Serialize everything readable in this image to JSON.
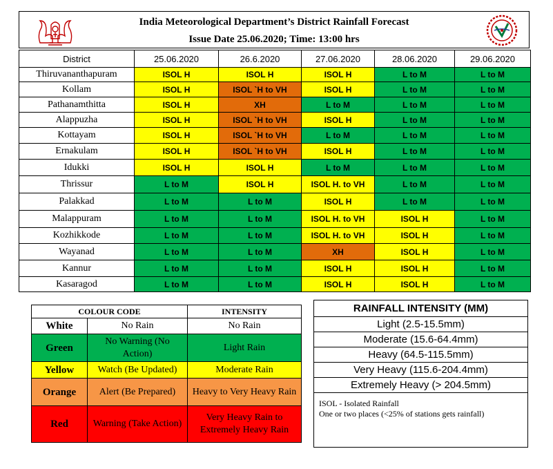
{
  "header": {
    "title": "India Meteorological Department’s District Rainfall Forecast",
    "issue_line": "Issue Date  25.06.2020;  Time: 13:00 hrs"
  },
  "forecast": {
    "column_headers": [
      "District",
      "25.06.2020",
      "26.6.2020",
      "27.06.2020",
      "28.06.2020",
      "29.06.2020"
    ],
    "rows": [
      {
        "district": "Thiruvananthapuram",
        "cells": [
          {
            "text": "ISOL H",
            "color": "Y"
          },
          {
            "text": "ISOL H",
            "color": "Y"
          },
          {
            "text": "ISOL H",
            "color": "Y"
          },
          {
            "text": "L to M",
            "color": "G"
          },
          {
            "text": "L to M",
            "color": "G"
          }
        ]
      },
      {
        "district": "Kollam",
        "cells": [
          {
            "text": "ISOL H",
            "color": "Y"
          },
          {
            "text": "ISOL `H to VH",
            "color": "O"
          },
          {
            "text": "ISOL H",
            "color": "Y"
          },
          {
            "text": "L to M",
            "color": "G"
          },
          {
            "text": "L to M",
            "color": "G"
          }
        ]
      },
      {
        "district": "Pathanamthitta",
        "cells": [
          {
            "text": "ISOL H",
            "color": "Y"
          },
          {
            "text": "XH",
            "color": "O"
          },
          {
            "text": "L to M",
            "color": "G"
          },
          {
            "text": "L to M",
            "color": "G"
          },
          {
            "text": "L to M",
            "color": "G"
          }
        ]
      },
      {
        "district": "Alappuzha",
        "cells": [
          {
            "text": "ISOL H",
            "color": "Y"
          },
          {
            "text": "ISOL `H to VH",
            "color": "O"
          },
          {
            "text": "ISOL H",
            "color": "Y"
          },
          {
            "text": "L to M",
            "color": "G"
          },
          {
            "text": "L to M",
            "color": "G"
          }
        ]
      },
      {
        "district": "Kottayam",
        "cells": [
          {
            "text": "ISOL H",
            "color": "Y"
          },
          {
            "text": "ISOL `H to VH",
            "color": "O"
          },
          {
            "text": "L to M",
            "color": "G"
          },
          {
            "text": "L to M",
            "color": "G"
          },
          {
            "text": "L to M",
            "color": "G"
          }
        ]
      },
      {
        "district": "Ernakulam",
        "cells": [
          {
            "text": "ISOL H",
            "color": "Y"
          },
          {
            "text": "ISOL `H to VH",
            "color": "O"
          },
          {
            "text": "ISOL H",
            "color": "Y"
          },
          {
            "text": "L to M",
            "color": "G"
          },
          {
            "text": "L to M",
            "color": "G"
          }
        ]
      },
      {
        "district": "Idukki",
        "cells": [
          {
            "text": "ISOL H",
            "color": "Y"
          },
          {
            "text": "ISOL H",
            "color": "Y"
          },
          {
            "text": "L to M",
            "color": "G"
          },
          {
            "text": "L to M",
            "color": "G"
          },
          {
            "text": "L to M",
            "color": "G"
          }
        ]
      },
      {
        "district": "Thrissur",
        "cells": [
          {
            "text": "L to M",
            "color": "G"
          },
          {
            "text": "ISOL H",
            "color": "Y"
          },
          {
            "text": "ISOL H. to VH",
            "color": "Y"
          },
          {
            "text": "L to M",
            "color": "G"
          },
          {
            "text": "L to M",
            "color": "G"
          }
        ]
      },
      {
        "district": "Palakkad",
        "cells": [
          {
            "text": "L to M",
            "color": "G"
          },
          {
            "text": "L to M",
            "color": "G"
          },
          {
            "text": "ISOL H",
            "color": "Y"
          },
          {
            "text": "L to M",
            "color": "G"
          },
          {
            "text": "L to M",
            "color": "G"
          }
        ]
      },
      {
        "district": "Malappuram",
        "cells": [
          {
            "text": "L to M",
            "color": "G"
          },
          {
            "text": "L to M",
            "color": "G"
          },
          {
            "text": "ISOL H. to VH",
            "color": "Y"
          },
          {
            "text": "ISOL H",
            "color": "Y"
          },
          {
            "text": "L to M",
            "color": "G"
          }
        ]
      },
      {
        "district": "Kozhikkode",
        "cells": [
          {
            "text": "L to M",
            "color": "G"
          },
          {
            "text": "L to M",
            "color": "G"
          },
          {
            "text": "ISOL H. to VH",
            "color": "Y"
          },
          {
            "text": "ISOL H",
            "color": "Y"
          },
          {
            "text": "L to M",
            "color": "G"
          }
        ]
      },
      {
        "district": "Wayanad",
        "cells": [
          {
            "text": "L to M",
            "color": "G"
          },
          {
            "text": "L to M",
            "color": "G"
          },
          {
            "text": "XH",
            "color": "O"
          },
          {
            "text": "ISOL H",
            "color": "Y"
          },
          {
            "text": "L to M",
            "color": "G"
          }
        ]
      },
      {
        "district": "Kannur",
        "cells": [
          {
            "text": "L to M",
            "color": "G"
          },
          {
            "text": "L to M",
            "color": "G"
          },
          {
            "text": "ISOL H",
            "color": "Y"
          },
          {
            "text": "ISOL H",
            "color": "Y"
          },
          {
            "text": "L to M",
            "color": "G"
          }
        ]
      },
      {
        "district": "Kasaragod",
        "cells": [
          {
            "text": "L to M",
            "color": "G"
          },
          {
            "text": "L to M",
            "color": "G"
          },
          {
            "text": "ISOL H",
            "color": "Y"
          },
          {
            "text": "ISOL H",
            "color": "Y"
          },
          {
            "text": "L to M",
            "color": "G"
          }
        ]
      }
    ]
  },
  "colour_code": {
    "headers": [
      "COLOUR  CODE",
      "INTENSITY"
    ],
    "rows": [
      {
        "color": "W",
        "name": "White",
        "meaning": "No Rain",
        "intensity": "No Rain"
      },
      {
        "color": "G",
        "name": "Green",
        "meaning": "No Warning  (No Action)",
        "intensity": "Light  Rain"
      },
      {
        "color": "Y",
        "name": "Yellow",
        "meaning": "Watch  (Be Updated)",
        "intensity": "Moderate Rain"
      },
      {
        "color": "O",
        "name": "Orange",
        "meaning": "Alert  (Be Prepared)",
        "intensity": "Heavy  to Very Heavy Rain"
      },
      {
        "color": "R",
        "name": "Red",
        "meaning": "Warning  (Take Action)",
        "intensity": "Very Heavy Rain to Extremely  Heavy Rain"
      }
    ]
  },
  "rainfall_intensity": {
    "title": "RAINFALL INTENSITY (MM)",
    "rows": [
      "Light (2.5-15.5mm)",
      "Moderate (15.6-64.4mm)",
      "Heavy (64.5-115.5mm)",
      "Very Heavy (115.6-204.4mm)",
      "Extremely Heavy (> 204.5mm)"
    ]
  },
  "note": {
    "line1": "ISOL  - Isolated Rainfall",
    "line2": "One or two places (<25%  of stations gets rainfall)"
  },
  "colors": {
    "green": "#00b050",
    "yellow": "#ffff00",
    "orange": "#e26b0a",
    "legend_orange": "#f79646",
    "red": "#ff0000"
  }
}
